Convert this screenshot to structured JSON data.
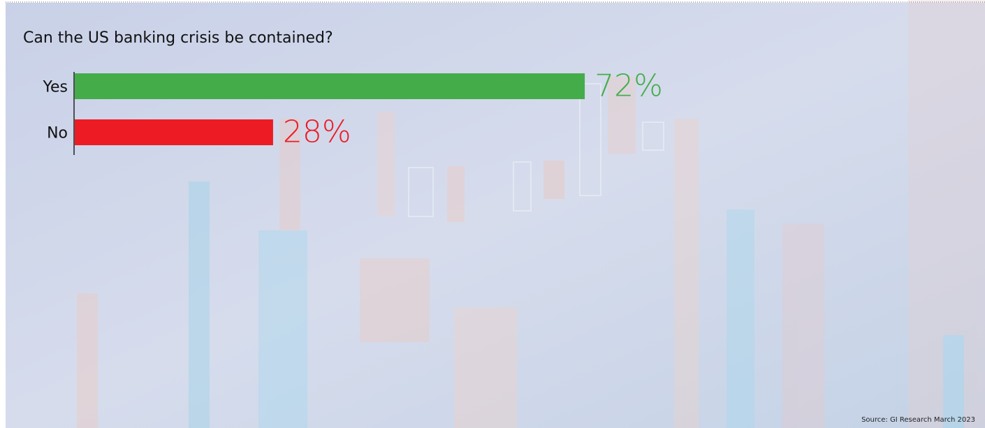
{
  "chart_data": {
    "type": "bar",
    "orientation": "horizontal",
    "title": "Can the US banking crisis be contained?",
    "categories": [
      "Yes",
      "No"
    ],
    "values": [
      72,
      28
    ],
    "value_labels": [
      "72%",
      "28%"
    ],
    "colors": [
      "#44ad4a",
      "#ed1c24"
    ],
    "source": "Source: GI Research March 2023"
  }
}
